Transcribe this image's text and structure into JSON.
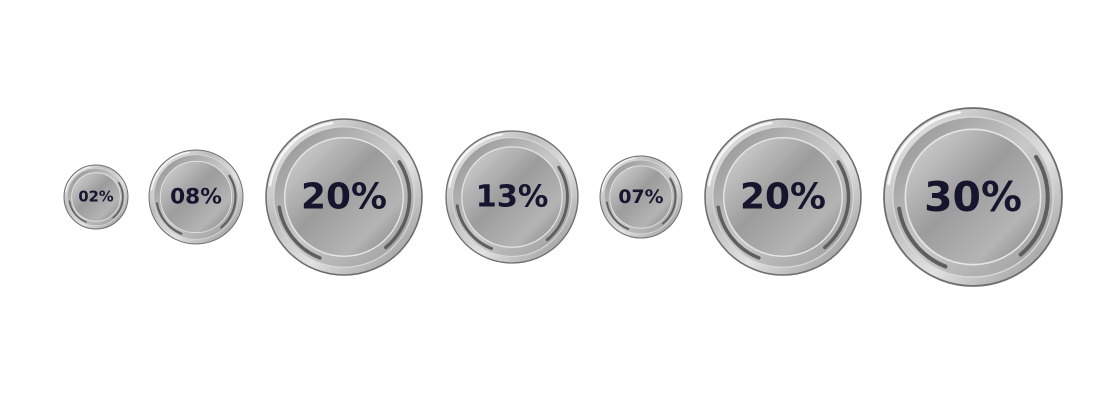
{
  "chart_data": {
    "type": "bubble",
    "title": "",
    "labels": [
      "02%",
      "08%",
      "20%",
      "13%",
      "07%",
      "20%",
      "30%"
    ],
    "values": [
      2,
      8,
      20,
      13,
      7,
      20,
      30
    ],
    "unit": "%",
    "colors": {
      "text": "#17142e",
      "metal_light": "#eeeeee",
      "metal_mid": "#a9a9a9",
      "metal_dark": "#6c6c6c",
      "rim": "#7a7a7a"
    }
  }
}
